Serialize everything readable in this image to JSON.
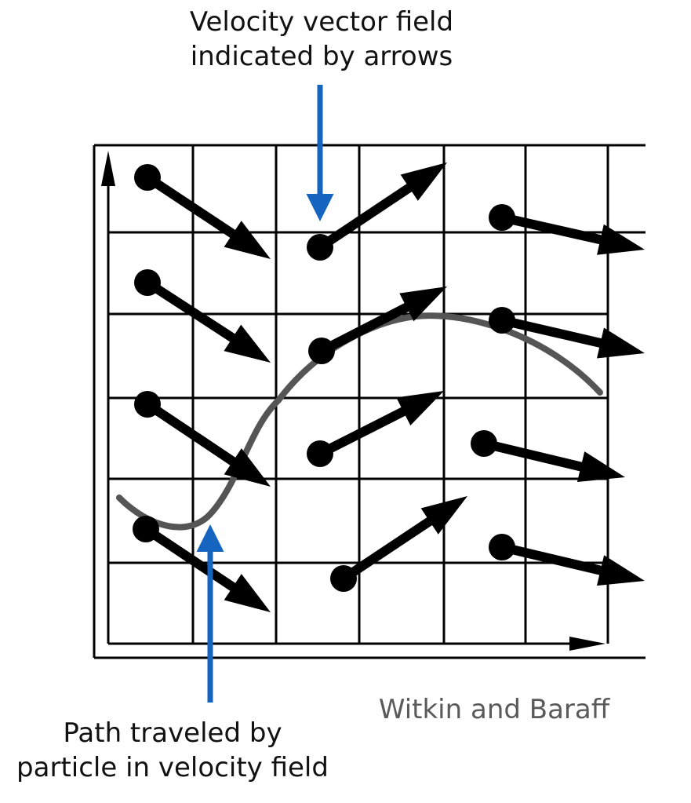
{
  "annotations": {
    "top_line1": "Velocity vector field",
    "top_line2": "indicated by arrows",
    "bottom_line1": "Path traveled by",
    "bottom_line2": "particle in velocity field",
    "credit": "Witkin and Baraff"
  },
  "colors": {
    "grid": "#000000",
    "vector": "#000000",
    "path": "#555555",
    "callout_arrow": "#1565c0",
    "credit_text": "#5a5a5a"
  }
}
